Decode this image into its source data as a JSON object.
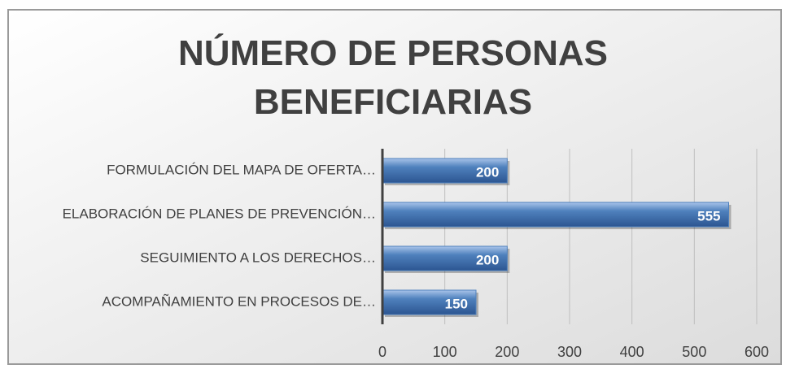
{
  "chart_data": {
    "type": "barh",
    "title": "NÚMERO DE PERSONAS BENEFICIARIAS",
    "categories": [
      "FORMULACIÓN DEL MAPA DE OFERTA…",
      "ELABORACIÓN DE PLANES DE PREVENCIÓN…",
      "SEGUIMIENTO A LOS DERECHOS…",
      "ACOMPAÑAMIENTO EN PROCESOS DE…"
    ],
    "values": [
      200,
      555,
      200,
      150
    ],
    "color": "#4f81bd",
    "xlim": [
      0,
      600
    ],
    "xticks": [
      0,
      100,
      200,
      300,
      400,
      500,
      600
    ],
    "grid": true
  }
}
